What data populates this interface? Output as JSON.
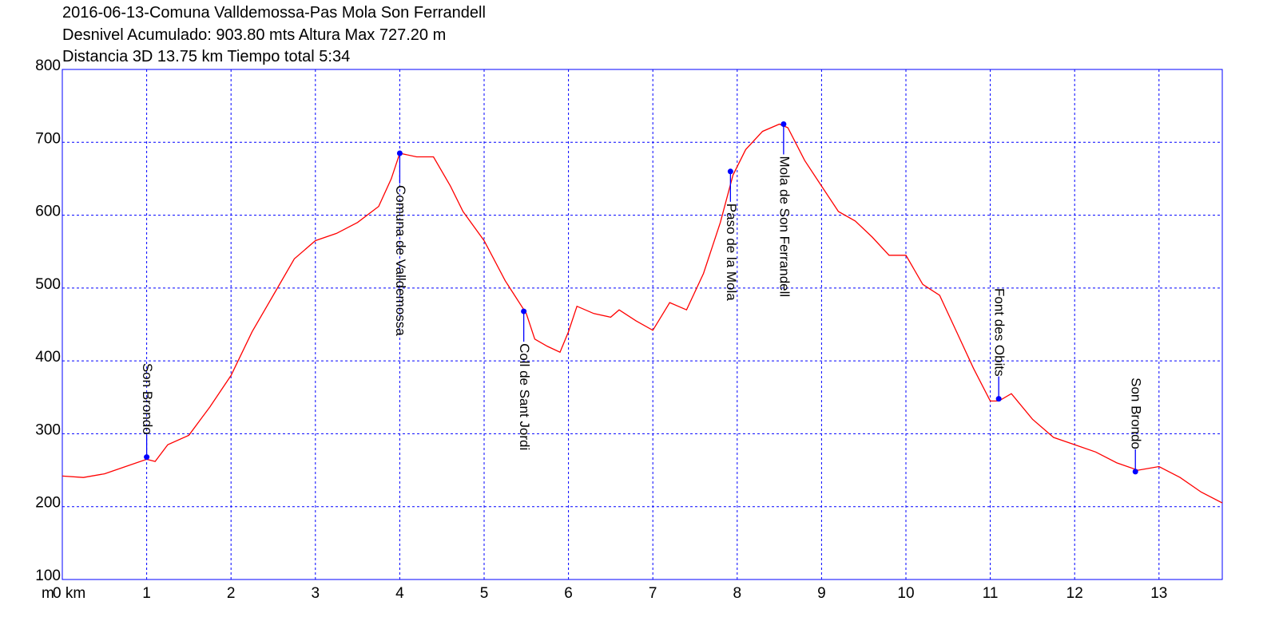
{
  "chart_data": {
    "type": "line",
    "title_lines": [
      "2016-06-13-Comuna Valldemossa-Pas Mola Son Ferrandell",
      "Desnivel Acumulado: 903.80 mts  Altura Max 727.20 m",
      "Distancia 3D 13.75 km  Tiempo total 5:34"
    ],
    "y_unit": "m",
    "color": "#ff0000",
    "grid": true,
    "xlim": [
      0,
      13.75
    ],
    "ylim": [
      100,
      800
    ],
    "xticks": [
      {
        "value": 0,
        "label": "0 km"
      },
      1,
      2,
      3,
      4,
      5,
      6,
      7,
      8,
      9,
      10,
      11,
      12,
      13
    ],
    "yticks": [
      100,
      200,
      300,
      400,
      500,
      600,
      700,
      800
    ],
    "x": [
      0,
      0.25,
      0.5,
      0.75,
      1.0,
      1.1,
      1.25,
      1.5,
      1.75,
      2.0,
      2.25,
      2.5,
      2.75,
      3.0,
      3.25,
      3.5,
      3.75,
      3.9,
      4.0,
      4.2,
      4.4,
      4.6,
      4.75,
      5.0,
      5.25,
      5.5,
      5.6,
      5.75,
      5.9,
      6.0,
      6.1,
      6.3,
      6.5,
      6.6,
      6.8,
      7.0,
      7.2,
      7.4,
      7.6,
      7.8,
      7.95,
      8.1,
      8.3,
      8.5,
      8.6,
      8.8,
      9.0,
      9.2,
      9.4,
      9.6,
      9.8,
      10.0,
      10.2,
      10.4,
      10.6,
      10.8,
      11.0,
      11.1,
      11.25,
      11.5,
      11.75,
      12.0,
      12.25,
      12.5,
      12.75,
      13.0,
      13.25,
      13.5,
      13.75
    ],
    "values": [
      242,
      240,
      245,
      255,
      265,
      262,
      285,
      298,
      337,
      380,
      440,
      490,
      540,
      565,
      575,
      590,
      612,
      650,
      685,
      680,
      680,
      640,
      605,
      565,
      510,
      465,
      430,
      420,
      412,
      440,
      475,
      465,
      460,
      470,
      455,
      442,
      480,
      470,
      520,
      590,
      655,
      690,
      715,
      725,
      720,
      675,
      640,
      605,
      592,
      570,
      545,
      545,
      505,
      490,
      440,
      390,
      345,
      345,
      355,
      320,
      295,
      285,
      275,
      260,
      250,
      255,
      240,
      220,
      205
    ],
    "waypoint_color": "#0000ff",
    "waypoints": [
      {
        "label": "Son Brondo",
        "x": 1.0,
        "value": 268,
        "position": "above"
      },
      {
        "label": "Comuna de Valldemossa",
        "x": 4.0,
        "value": 685,
        "position": "below"
      },
      {
        "label": "Coll de Sant Jordi",
        "x": 5.47,
        "value": 468,
        "position": "below"
      },
      {
        "label": "Paso de la Mola",
        "x": 7.92,
        "value": 660,
        "position": "below"
      },
      {
        "label": "Mola de Son Ferrandell",
        "x": 8.55,
        "value": 725,
        "position": "below"
      },
      {
        "label": "Font des Obits",
        "x": 11.1,
        "value": 348,
        "position": "above"
      },
      {
        "label": "Son Brondo",
        "x": 12.72,
        "value": 248,
        "position": "above"
      }
    ]
  }
}
